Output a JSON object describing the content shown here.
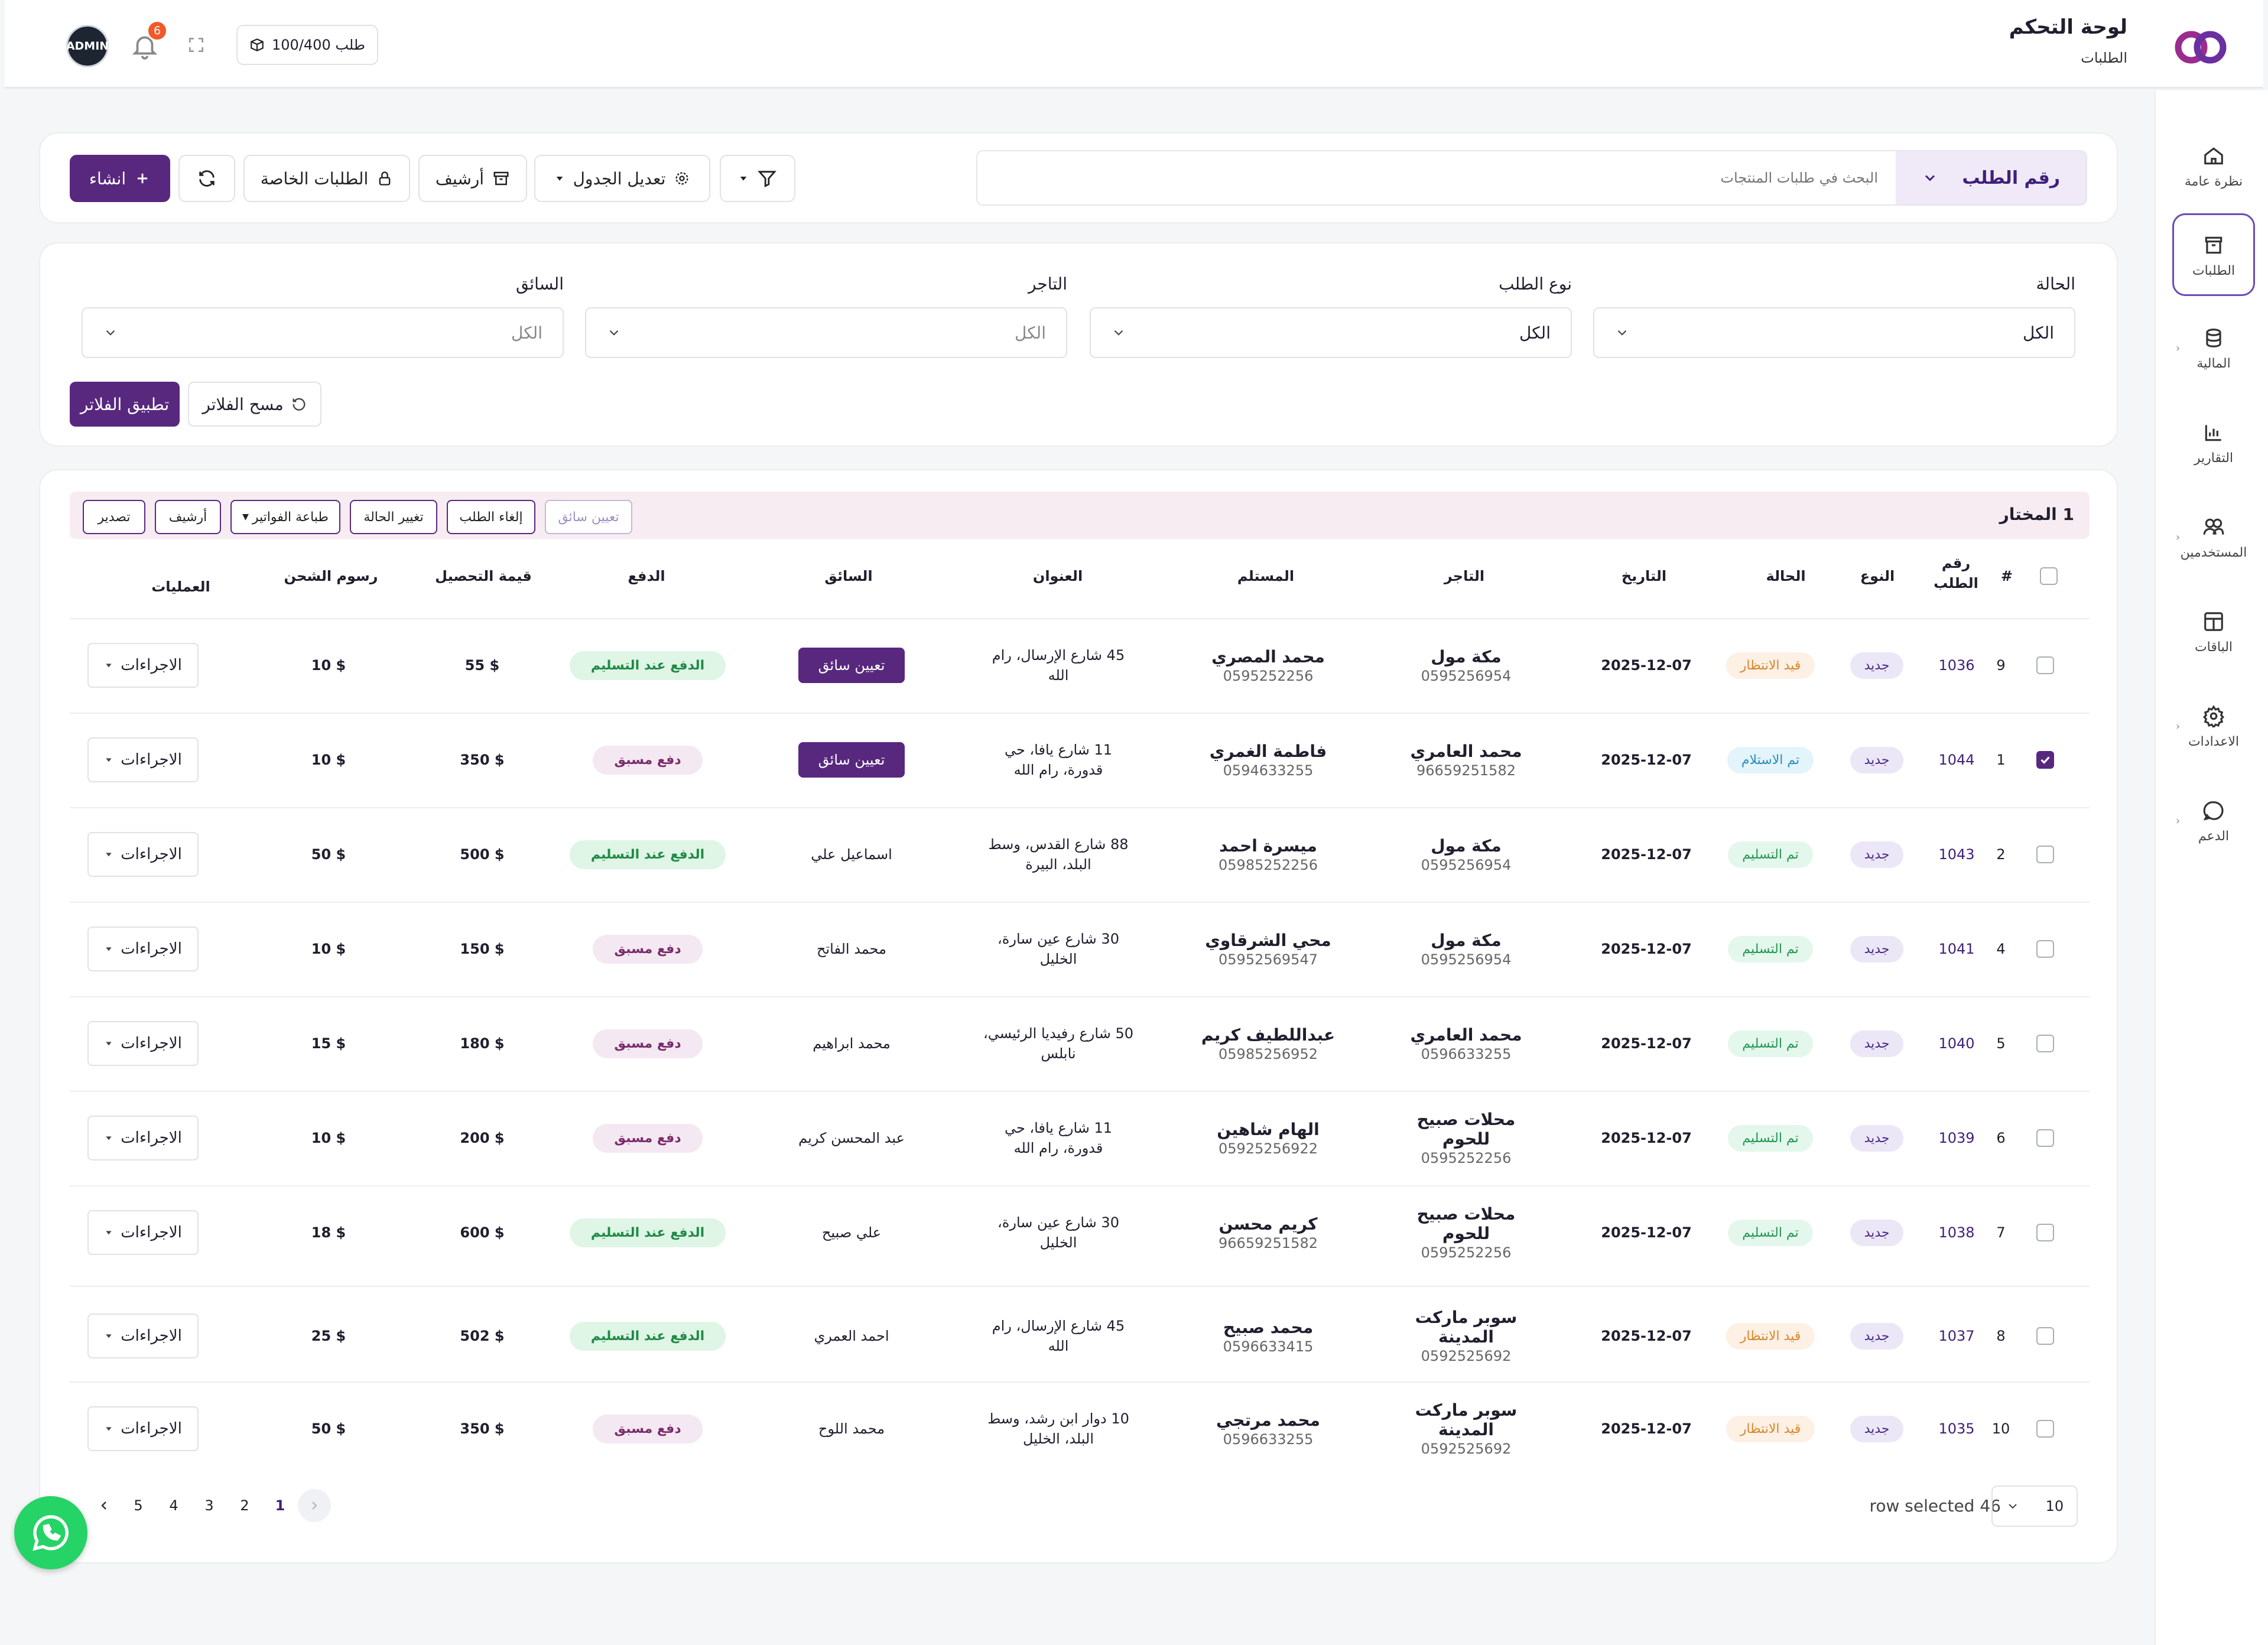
{
  "header": {
    "title": "لوحة التحكم",
    "subtitle": "الطلبات",
    "quota": "100/400 طلب",
    "notification_count": "6",
    "avatar": "ADMIN"
  },
  "sidebar": {
    "items": [
      {
        "label": "نظرة عامة",
        "icon": "home-icon"
      },
      {
        "label": "الطلبات",
        "icon": "orders-icon"
      },
      {
        "label": "المالية",
        "icon": "finance-icon"
      },
      {
        "label": "التقارير",
        "icon": "reports-icon"
      },
      {
        "label": "المستخدمين",
        "icon": "users-icon"
      },
      {
        "label": "الباقات",
        "icon": "packages-icon"
      },
      {
        "label": "الاعدادات",
        "icon": "settings-icon"
      },
      {
        "label": "الدعم",
        "icon": "support-icon"
      }
    ]
  },
  "toolbar": {
    "search_type": "رقم الطلب",
    "search_placeholder": "البحث في طلبات المنتجات",
    "edit_table": "تعديل الجدول",
    "archive": "أرشيف",
    "private_orders": "الطلبات الخاصة",
    "create": "انشاء"
  },
  "filters": {
    "status_label": "الحالة",
    "status_value": "الكل",
    "order_type_label": "نوع الطلب",
    "order_type_value": "الكل",
    "merchant_label": "التاجر",
    "merchant_value": "الكل",
    "driver_label": "السائق",
    "driver_value": "الكل",
    "clear": "مسح الفلاتر",
    "apply": "تطبيق الفلاتر"
  },
  "bulk": {
    "selected_count": "1",
    "selected_label": "المختار",
    "assign_driver": "تعيين سائق",
    "cancel_order": "إلغاء الطلب",
    "change_status": "تغيير الحالة",
    "print_invoices": "طباعة الفواتير",
    "archive": "أرشيف",
    "export": "تصدير"
  },
  "table": {
    "headers": {
      "index": "#",
      "order_no": "رقم الطلب",
      "type": "النوع",
      "status": "الحالة",
      "date": "التاريخ",
      "merchant": "التاجر",
      "recipient": "المستلم",
      "address": "العنوان",
      "driver": "السائق",
      "payment": "الدفع",
      "collection": "قيمة التحصيل",
      "shipping": "رسوم الشحن",
      "actions": "العمليات"
    },
    "actions_label": "الاجراءات",
    "rows": [
      {
        "checked": false,
        "index": "9",
        "order_no": "1036",
        "type": "جديد",
        "status": "قيد الانتظار",
        "status_kind": "pending",
        "date": "2025-12-07",
        "merchant": "مكة مول",
        "merchant_phone": "0595256954",
        "recipient": "محمد المصري",
        "recipient_phone": "0595252256",
        "address_1": "45 شارع الإرسال، رام",
        "address_2": "الله",
        "driver": "تعيين سائق",
        "driver_is_button": true,
        "payment": "الدفع عند التسليم",
        "payment_kind": "cod",
        "collection": "$ 55",
        "shipping": "$ 10"
      },
      {
        "checked": true,
        "index": "1",
        "order_no": "1044",
        "type": "جديد",
        "status": "تم الاستلام",
        "status_kind": "received",
        "date": "2025-12-07",
        "merchant": "محمد العامري",
        "merchant_phone": "96659251582",
        "recipient": "فاطمة الغمري",
        "recipient_phone": "0594633255",
        "address_1": "11 شارع يافا، حي",
        "address_2": "قدورة، رام الله",
        "driver": "تعيين سائق",
        "driver_is_button": true,
        "payment": "دفع مسبق",
        "payment_kind": "prepaid",
        "collection": "$ 350",
        "shipping": "$ 10"
      },
      {
        "checked": false,
        "index": "2",
        "order_no": "1043",
        "type": "جديد",
        "status": "تم التسليم",
        "status_kind": "delivered",
        "date": "2025-12-07",
        "merchant": "مكة مول",
        "merchant_phone": "0595256954",
        "recipient": "ميسرة احمد",
        "recipient_phone": "05985252256",
        "address_1": "88 شارع القدس، وسط",
        "address_2": "البلد، البيرة",
        "driver": "اسماعيل علي",
        "driver_is_button": false,
        "payment": "الدفع عند التسليم",
        "payment_kind": "cod",
        "collection": "$ 500",
        "shipping": "$ 50"
      },
      {
        "checked": false,
        "index": "4",
        "order_no": "1041",
        "type": "جديد",
        "status": "تم التسليم",
        "status_kind": "delivered",
        "date": "2025-12-07",
        "merchant": "مكة مول",
        "merchant_phone": "0595256954",
        "recipient": "محي الشرقاوي",
        "recipient_phone": "05952569547",
        "address_1": "30 شارع عين سارة،",
        "address_2": "الخليل",
        "driver": "محمد الفاتح",
        "driver_is_button": false,
        "payment": "دفع مسبق",
        "payment_kind": "prepaid",
        "collection": "$ 150",
        "shipping": "$ 10"
      },
      {
        "checked": false,
        "index": "5",
        "order_no": "1040",
        "type": "جديد",
        "status": "تم التسليم",
        "status_kind": "delivered",
        "date": "2025-12-07",
        "merchant": "محمد العامري",
        "merchant_phone": "0596633255",
        "recipient": "عبداللطيف كريم",
        "recipient_phone": "05985256952",
        "address_1": "50 شارع رفيديا الرئيسي،",
        "address_2": "نابلس",
        "driver": "محمد ابراهيم",
        "driver_is_button": false,
        "payment": "دفع مسبق",
        "payment_kind": "prepaid",
        "collection": "$ 180",
        "shipping": "$ 15"
      },
      {
        "checked": false,
        "index": "6",
        "order_no": "1039",
        "type": "جديد",
        "status": "تم التسليم",
        "status_kind": "delivered",
        "date": "2025-12-07",
        "merchant": "محلات صبيح للحوم",
        "merchant_phone": "0595252256",
        "recipient": "الهام شاهين",
        "recipient_phone": "05925256922",
        "address_1": "11 شارع يافا، حي",
        "address_2": "قدورة، رام الله",
        "driver": "عبد المحسن كريم",
        "driver_is_button": false,
        "payment": "دفع مسبق",
        "payment_kind": "prepaid",
        "collection": "$ 200",
        "shipping": "$ 10"
      },
      {
        "checked": false,
        "index": "7",
        "order_no": "1038",
        "type": "جديد",
        "status": "تم التسليم",
        "status_kind": "delivered",
        "date": "2025-12-07",
        "merchant": "محلات صبيح للحوم",
        "merchant_phone": "0595252256",
        "recipient": "كريم محسن",
        "recipient_phone": "96659251582",
        "address_1": "30 شارع عين سارة،",
        "address_2": "الخليل",
        "driver": "علي صبيح",
        "driver_is_button": false,
        "payment": "الدفع عند التسليم",
        "payment_kind": "cod",
        "collection": "$ 600",
        "shipping": "$ 18"
      },
      {
        "checked": false,
        "index": "8",
        "order_no": "1037",
        "type": "جديد",
        "status": "قيد الانتظار",
        "status_kind": "pending",
        "date": "2025-12-07",
        "merchant": "سوبر ماركت المدينة",
        "merchant_phone": "0592525692",
        "recipient": "محمد صبيح",
        "recipient_phone": "0596633415",
        "address_1": "45 شارع الإرسال، رام",
        "address_2": "الله",
        "driver": "احمد العمري",
        "driver_is_button": false,
        "payment": "الدفع عند التسليم",
        "payment_kind": "cod",
        "collection": "$ 502",
        "shipping": "$ 25"
      },
      {
        "checked": false,
        "index": "10",
        "order_no": "1035",
        "type": "جديد",
        "status": "قيد الانتظار",
        "status_kind": "pending",
        "date": "2025-12-07",
        "merchant": "سوبر ماركت المدينة",
        "merchant_phone": "0592525692",
        "recipient": "محمد مرتجي",
        "recipient_phone": "0596633255",
        "address_1": "10 دوار ابن رشد، وسط",
        "address_2": "البلد، الخليل",
        "driver": "محمد اللوح",
        "driver_is_button": false,
        "payment": "دفع مسبق",
        "payment_kind": "prepaid",
        "collection": "$ 350",
        "shipping": "$ 50"
      }
    ]
  },
  "footer": {
    "rows_selected": "row selected 46",
    "page_size": "10",
    "pages": [
      "1",
      "2",
      "3",
      "4",
      "5"
    ],
    "current_page": "1"
  }
}
